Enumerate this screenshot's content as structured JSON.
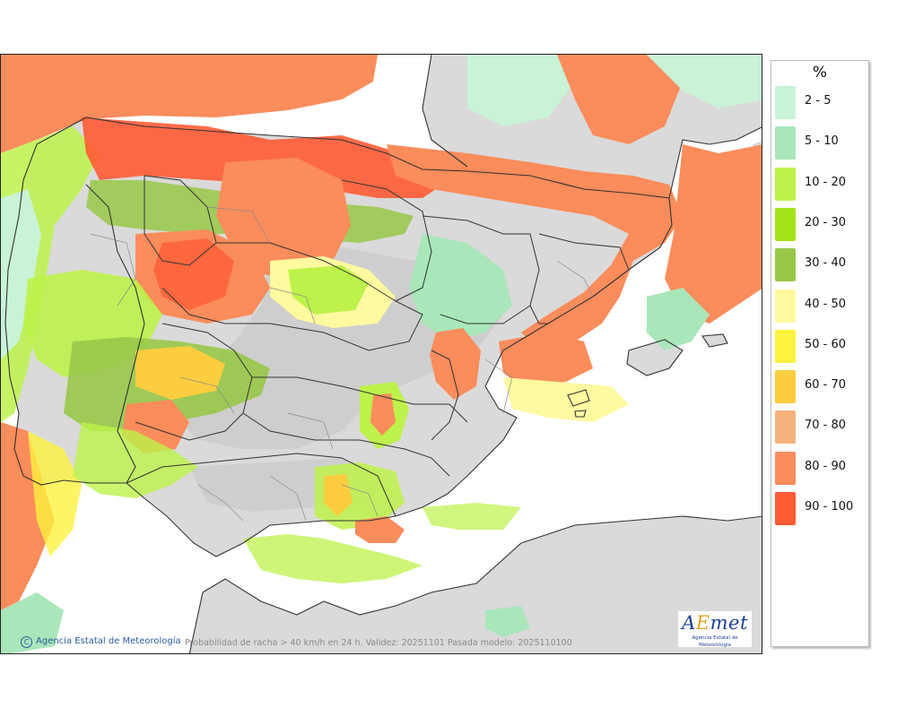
{
  "legend": {
    "unit_label": "%",
    "items": [
      {
        "label": "2 - 5",
        "color": "#c8f3d6"
      },
      {
        "label": "5 - 10",
        "color": "#a9e6ba"
      },
      {
        "label": "10 - 20",
        "color": "#bdf24a"
      },
      {
        "label": "20 - 30",
        "color": "#a4e21a"
      },
      {
        "label": "30 - 40",
        "color": "#98c848"
      },
      {
        "label": "40 - 50",
        "color": "#fff9a0"
      },
      {
        "label": "50 - 60",
        "color": "#fdf23e"
      },
      {
        "label": "60 - 70",
        "color": "#fbcd3f"
      },
      {
        "label": "70 - 80",
        "color": "#f6b27d"
      },
      {
        "label": "80 - 90",
        "color": "#fb8c5c"
      },
      {
        "label": "90 - 100",
        "color": "#ff5b34"
      }
    ]
  },
  "footer": {
    "credit": "Agencia Estatal de Meteorología",
    "copyright_symbol": "C",
    "caption": "Probabilidad de racha > 40 km/h en 24 h. Validez: 20251101 Pasada modelo: 2025110100"
  },
  "logo": {
    "name_a": "A",
    "name_e": "E",
    "name_rest": "met",
    "subtitle": "Agencia Estatal de Meteorología"
  },
  "colors": {
    "sea": "#ffffff",
    "land": "#d8d8d8",
    "relief": "#c2c2c2",
    "border": "#333333",
    "province_border": "#8a8a8a"
  }
}
